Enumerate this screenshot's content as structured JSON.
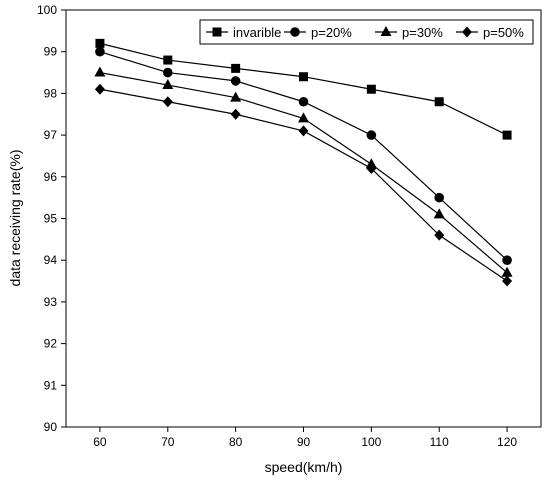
{
  "chart_data": {
    "type": "line",
    "title": "",
    "xlabel": "speed(km/h)",
    "ylabel": "data receiving rate(%)",
    "x": [
      60,
      70,
      80,
      90,
      100,
      110,
      120
    ],
    "xlim": [
      55,
      125
    ],
    "ylim": [
      90,
      100
    ],
    "xticks": [
      60,
      70,
      80,
      90,
      100,
      110,
      120
    ],
    "yticks": [
      90,
      91,
      92,
      93,
      94,
      95,
      96,
      97,
      98,
      99,
      100
    ],
    "grid": false,
    "legend_position": "top-right",
    "series": [
      {
        "name": "invarible",
        "marker": "square",
        "color": "#000000",
        "values": [
          99.2,
          98.8,
          98.6,
          98.4,
          98.1,
          97.8,
          97.0
        ]
      },
      {
        "name": "p=20%",
        "marker": "circle",
        "color": "#000000",
        "values": [
          99.0,
          98.5,
          98.3,
          97.8,
          97.0,
          95.5,
          94.0
        ]
      },
      {
        "name": "p=30%",
        "marker": "triangle",
        "color": "#000000",
        "values": [
          98.5,
          98.2,
          97.9,
          97.4,
          96.3,
          95.1,
          93.7
        ]
      },
      {
        "name": "p=50%",
        "marker": "diamond",
        "color": "#000000",
        "values": [
          98.1,
          97.8,
          97.5,
          97.1,
          96.2,
          94.6,
          93.5
        ]
      }
    ]
  }
}
